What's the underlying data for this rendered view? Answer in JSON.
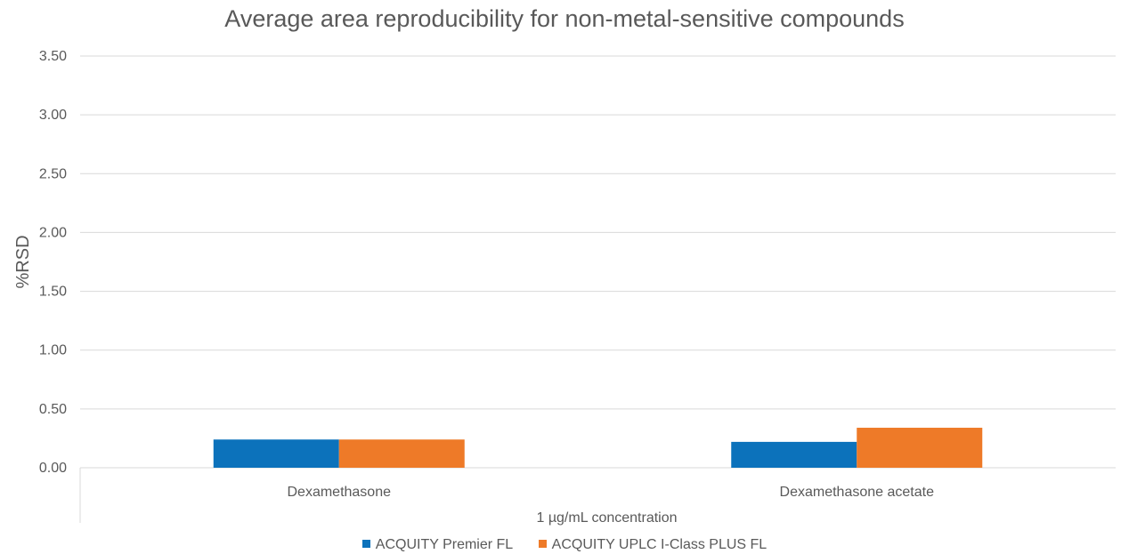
{
  "chart_data": {
    "type": "bar",
    "title": "Average area reproducibility for non-metal-sensitive compounds",
    "xlabel": "1 µg/mL concentration",
    "ylabel": "%RSD",
    "ylim": [
      0,
      3.5
    ],
    "yticks": [
      "0.00",
      "0.50",
      "1.00",
      "1.50",
      "2.00",
      "2.50",
      "3.00",
      "3.50"
    ],
    "grid": true,
    "legend_position": "bottom",
    "categories": [
      "Dexamethasone",
      "Dexamethasone acetate"
    ],
    "series": [
      {
        "name": "ACQUITY Premier FL",
        "color": "#0c72bb",
        "values": [
          0.24,
          0.22
        ]
      },
      {
        "name": "ACQUITY UPLC I-Class PLUS FL",
        "color": "#ee7a28",
        "values": [
          0.24,
          0.34
        ]
      }
    ]
  }
}
